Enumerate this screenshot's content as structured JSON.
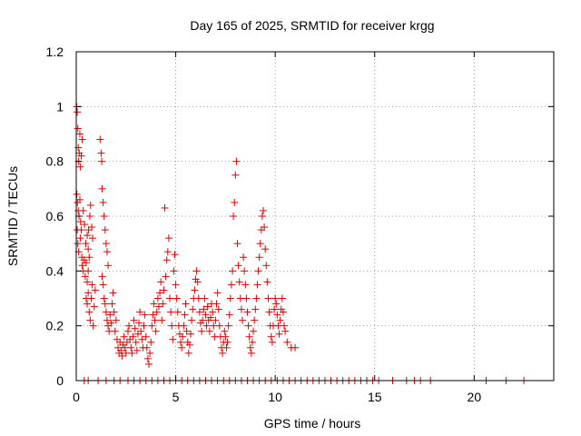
{
  "chart_data": {
    "type": "scatter",
    "title": "Day 165 of 2025, SRMTID for receiver krgg",
    "xlabel": "GPS time / hours",
    "ylabel": "SRMTID / TECUs",
    "xlim": [
      0,
      24
    ],
    "ylim": [
      0,
      1.2
    ],
    "x_ticks": [
      0,
      5,
      10,
      15,
      20
    ],
    "y_ticks": [
      0,
      0.2,
      0.4,
      0.6,
      0.8,
      1,
      1.2
    ],
    "x_tick_labels": [
      "0",
      "5",
      "10",
      "15",
      "20"
    ],
    "y_tick_labels": [
      "0",
      "0.2",
      "0.4",
      "0.6",
      "0.8",
      "1",
      "1.2"
    ],
    "grid": true,
    "marker": "plus",
    "color": "#e00000",
    "series": [
      {
        "name": "SRMTID",
        "points": [
          [
            0.02,
            1.0
          ],
          [
            0.05,
            0.98
          ],
          [
            0.08,
            0.92
          ],
          [
            0.1,
            0.85
          ],
          [
            0.12,
            0.8
          ],
          [
            0.15,
            0.83
          ],
          [
            0.18,
            0.9
          ],
          [
            0.2,
            0.78
          ],
          [
            0.25,
            0.82
          ],
          [
            0.3,
            0.88
          ],
          [
            0.03,
            0.68
          ],
          [
            0.06,
            0.65
          ],
          [
            0.1,
            0.62
          ],
          [
            0.14,
            0.6
          ],
          [
            0.18,
            0.66
          ],
          [
            0.22,
            0.58
          ],
          [
            0.25,
            0.55
          ],
          [
            0.05,
            0.55
          ],
          [
            0.08,
            0.5
          ],
          [
            0.12,
            0.47
          ],
          [
            0.2,
            0.52
          ],
          [
            0.28,
            0.45
          ],
          [
            0.3,
            0.42
          ],
          [
            0.35,
            0.4
          ],
          [
            0.4,
            0.44
          ],
          [
            0.45,
            0.38
          ],
          [
            0.5,
            0.43
          ],
          [
            0.55,
            0.36
          ],
          [
            0.6,
            0.4
          ],
          [
            0.65,
            0.45
          ],
          [
            0.35,
            0.62
          ],
          [
            0.42,
            0.57
          ],
          [
            0.48,
            0.5
          ],
          [
            0.55,
            0.53
          ],
          [
            0.6,
            0.48
          ],
          [
            0.62,
            0.55
          ],
          [
            0.68,
            0.6
          ],
          [
            0.72,
            0.64
          ],
          [
            0.78,
            0.56
          ],
          [
            0.82,
            0.52
          ],
          [
            0.5,
            0.3
          ],
          [
            0.55,
            0.28
          ],
          [
            0.6,
            0.32
          ],
          [
            0.65,
            0.25
          ],
          [
            0.7,
            0.22
          ],
          [
            0.75,
            0.3
          ],
          [
            0.8,
            0.35
          ],
          [
            0.85,
            0.2
          ],
          [
            0.9,
            0.27
          ],
          [
            0.95,
            0.33
          ],
          [
            1.2,
            0.88
          ],
          [
            1.25,
            0.83
          ],
          [
            1.28,
            0.8
          ],
          [
            1.3,
            0.7
          ],
          [
            1.35,
            0.65
          ],
          [
            1.4,
            0.6
          ],
          [
            1.45,
            0.55
          ],
          [
            1.5,
            0.5
          ],
          [
            1.55,
            0.47
          ],
          [
            1.6,
            0.42
          ],
          [
            1.3,
            0.38
          ],
          [
            1.35,
            0.35
          ],
          [
            1.4,
            0.3
          ],
          [
            1.45,
            0.28
          ],
          [
            1.5,
            0.25
          ],
          [
            1.55,
            0.22
          ],
          [
            1.6,
            0.2
          ],
          [
            1.65,
            0.18
          ],
          [
            1.7,
            0.24
          ],
          [
            1.75,
            0.21
          ],
          [
            1.8,
            0.28
          ],
          [
            1.85,
            0.32
          ],
          [
            1.9,
            0.25
          ],
          [
            1.95,
            0.18
          ],
          [
            2.0,
            0.22
          ],
          [
            2.05,
            0.15
          ],
          [
            2.1,
            0.12
          ],
          [
            2.15,
            0.1
          ],
          [
            2.2,
            0.14
          ],
          [
            2.25,
            0.11
          ],
          [
            2.3,
            0.09
          ],
          [
            2.35,
            0.13
          ],
          [
            2.4,
            0.16
          ],
          [
            2.45,
            0.12
          ],
          [
            2.5,
            0.1
          ],
          [
            2.55,
            0.14
          ],
          [
            2.6,
            0.18
          ],
          [
            2.65,
            0.2
          ],
          [
            2.7,
            0.15
          ],
          [
            2.75,
            0.12
          ],
          [
            2.8,
            0.1
          ],
          [
            2.85,
            0.16
          ],
          [
            2.9,
            0.22
          ],
          [
            2.95,
            0.19
          ],
          [
            3.0,
            0.14
          ],
          [
            3.05,
            0.11
          ],
          [
            3.1,
            0.17
          ],
          [
            3.15,
            0.21
          ],
          [
            3.2,
            0.25
          ],
          [
            3.25,
            0.18
          ],
          [
            3.3,
            0.15
          ],
          [
            3.35,
            0.12
          ],
          [
            3.4,
            0.2
          ],
          [
            3.45,
            0.24
          ],
          [
            3.5,
            0.16
          ],
          [
            3.55,
            0.12
          ],
          [
            3.6,
            0.08
          ],
          [
            3.65,
            0.06
          ],
          [
            3.7,
            0.1
          ],
          [
            3.75,
            0.14
          ],
          [
            3.8,
            0.2
          ],
          [
            3.85,
            0.24
          ],
          [
            3.9,
            0.28
          ],
          [
            3.95,
            0.22
          ],
          [
            4.0,
            0.18
          ],
          [
            4.05,
            0.25
          ],
          [
            4.1,
            0.3
          ],
          [
            4.15,
            0.27
          ],
          [
            4.2,
            0.32
          ],
          [
            4.25,
            0.36
          ],
          [
            4.3,
            0.22
          ],
          [
            4.35,
            0.28
          ],
          [
            4.4,
            0.33
          ],
          [
            4.45,
            0.63
          ],
          [
            4.5,
            0.38
          ],
          [
            4.55,
            0.44
          ],
          [
            4.6,
            0.47
          ],
          [
            4.65,
            0.52
          ],
          [
            4.7,
            0.3
          ],
          [
            4.75,
            0.25
          ],
          [
            4.8,
            0.2
          ],
          [
            4.85,
            0.15
          ],
          [
            4.9,
            0.4
          ],
          [
            4.95,
            0.46
          ],
          [
            5.0,
            0.35
          ],
          [
            5.05,
            0.3
          ],
          [
            5.1,
            0.25
          ],
          [
            5.15,
            0.2
          ],
          [
            5.2,
            0.17
          ],
          [
            5.25,
            0.14
          ],
          [
            5.3,
            0.12
          ],
          [
            5.35,
            0.16
          ],
          [
            5.4,
            0.2
          ],
          [
            5.45,
            0.24
          ],
          [
            5.5,
            0.28
          ],
          [
            5.55,
            0.18
          ],
          [
            5.6,
            0.14
          ],
          [
            5.65,
            0.1
          ],
          [
            5.7,
            0.13
          ],
          [
            5.75,
            0.17
          ],
          [
            5.8,
            0.22
          ],
          [
            5.85,
            0.26
          ],
          [
            5.9,
            0.3
          ],
          [
            5.95,
            0.33
          ],
          [
            6.0,
            0.37
          ],
          [
            6.05,
            0.4
          ],
          [
            6.1,
            0.36
          ],
          [
            6.15,
            0.3
          ],
          [
            6.2,
            0.25
          ],
          [
            6.25,
            0.21
          ],
          [
            6.3,
            0.18
          ],
          [
            6.35,
            0.22
          ],
          [
            6.4,
            0.26
          ],
          [
            6.45,
            0.3
          ],
          [
            6.5,
            0.24
          ],
          [
            6.55,
            0.2
          ],
          [
            6.6,
            0.27
          ],
          [
            6.65,
            0.22
          ],
          [
            6.7,
            0.18
          ],
          [
            6.75,
            0.23
          ],
          [
            6.8,
            0.28
          ],
          [
            6.85,
            0.25
          ],
          [
            6.9,
            0.2
          ],
          [
            6.95,
            0.16
          ],
          [
            7.0,
            0.22
          ],
          [
            7.05,
            0.28
          ],
          [
            7.1,
            0.32
          ],
          [
            7.15,
            0.26
          ],
          [
            7.2,
            0.2
          ],
          [
            7.25,
            0.16
          ],
          [
            7.3,
            0.12
          ],
          [
            7.35,
            0.1
          ],
          [
            7.4,
            0.14
          ],
          [
            7.45,
            0.18
          ],
          [
            7.5,
            0.16
          ],
          [
            7.55,
            0.12
          ],
          [
            7.6,
            0.14
          ],
          [
            7.65,
            0.2
          ],
          [
            7.7,
            0.24
          ],
          [
            7.75,
            0.3
          ],
          [
            7.8,
            0.35
          ],
          [
            7.85,
            0.4
          ],
          [
            7.9,
            0.6
          ],
          [
            7.95,
            0.65
          ],
          [
            8.0,
            0.75
          ],
          [
            8.05,
            0.8
          ],
          [
            8.1,
            0.5
          ],
          [
            8.15,
            0.42
          ],
          [
            8.2,
            0.36
          ],
          [
            8.25,
            0.3
          ],
          [
            8.3,
            0.26
          ],
          [
            8.35,
            0.22
          ],
          [
            8.4,
            0.45
          ],
          [
            8.45,
            0.4
          ],
          [
            8.5,
            0.35
          ],
          [
            8.55,
            0.3
          ],
          [
            8.6,
            0.25
          ],
          [
            8.65,
            0.2
          ],
          [
            8.7,
            0.16
          ],
          [
            8.75,
            0.12
          ],
          [
            8.8,
            0.1
          ],
          [
            8.85,
            0.14
          ],
          [
            8.9,
            0.18
          ],
          [
            8.95,
            0.22
          ],
          [
            9.0,
            0.26
          ],
          [
            9.05,
            0.3
          ],
          [
            9.1,
            0.35
          ],
          [
            9.15,
            0.4
          ],
          [
            9.2,
            0.45
          ],
          [
            9.25,
            0.5
          ],
          [
            9.3,
            0.55
          ],
          [
            9.35,
            0.6
          ],
          [
            9.4,
            0.62
          ],
          [
            9.45,
            0.56
          ],
          [
            9.5,
            0.48
          ],
          [
            9.55,
            0.42
          ],
          [
            9.6,
            0.36
          ],
          [
            9.65,
            0.3
          ],
          [
            9.7,
            0.25
          ],
          [
            9.75,
            0.2
          ],
          [
            9.8,
            0.16
          ],
          [
            9.85,
            0.14
          ],
          [
            9.9,
            0.2
          ],
          [
            9.95,
            0.26
          ],
          [
            10.0,
            0.3
          ],
          [
            10.05,
            0.28
          ],
          [
            10.1,
            0.24
          ],
          [
            10.15,
            0.2
          ],
          [
            10.2,
            0.17
          ],
          [
            10.25,
            0.22
          ],
          [
            10.3,
            0.26
          ],
          [
            10.35,
            0.3
          ],
          [
            10.4,
            0.25
          ],
          [
            10.45,
            0.2
          ],
          [
            10.5,
            0.18
          ],
          [
            10.6,
            0.14
          ],
          [
            10.8,
            0.12
          ],
          [
            11.0,
            0.12
          ],
          [
            0.4,
            0.0
          ],
          [
            0.6,
            0.0
          ],
          [
            1.1,
            0.0
          ],
          [
            1.5,
            0.0
          ],
          [
            1.9,
            0.0
          ],
          [
            2.2,
            0.0
          ],
          [
            2.6,
            0.0
          ],
          [
            2.9,
            0.0
          ],
          [
            3.2,
            0.0
          ],
          [
            3.5,
            0.0
          ],
          [
            3.8,
            0.0
          ],
          [
            4.1,
            0.0
          ],
          [
            4.4,
            0.0
          ],
          [
            4.7,
            0.0
          ],
          [
            5.0,
            0.0
          ],
          [
            5.3,
            0.0
          ],
          [
            5.6,
            0.0
          ],
          [
            5.9,
            0.0
          ],
          [
            6.2,
            0.0
          ],
          [
            6.5,
            0.0
          ],
          [
            6.8,
            0.0
          ],
          [
            7.1,
            0.0
          ],
          [
            7.4,
            0.0
          ],
          [
            7.7,
            0.0
          ],
          [
            8.0,
            0.0
          ],
          [
            8.3,
            0.0
          ],
          [
            8.6,
            0.0
          ],
          [
            8.9,
            0.0
          ],
          [
            9.2,
            0.0
          ],
          [
            9.5,
            0.0
          ],
          [
            9.8,
            0.0
          ],
          [
            10.1,
            0.0
          ],
          [
            10.4,
            0.0
          ],
          [
            10.7,
            0.0
          ],
          [
            11.0,
            0.0
          ],
          [
            11.3,
            0.0
          ],
          [
            11.6,
            0.0
          ],
          [
            11.9,
            0.0
          ],
          [
            12.2,
            0.0
          ],
          [
            12.5,
            0.0
          ],
          [
            12.8,
            0.0
          ],
          [
            13.1,
            0.0
          ],
          [
            13.4,
            0.0
          ],
          [
            13.7,
            0.0
          ],
          [
            14.0,
            0.0
          ],
          [
            14.3,
            0.0
          ],
          [
            14.6,
            0.0
          ],
          [
            14.9,
            0.0
          ],
          [
            15.2,
            0.0
          ],
          [
            15.9,
            0.0
          ],
          [
            16.6,
            0.0
          ],
          [
            17.0,
            0.0
          ],
          [
            17.3,
            0.0
          ],
          [
            17.8,
            0.0
          ],
          [
            20.6,
            0.0
          ],
          [
            21.6,
            0.0
          ],
          [
            22.5,
            0.0
          ]
        ]
      }
    ]
  }
}
